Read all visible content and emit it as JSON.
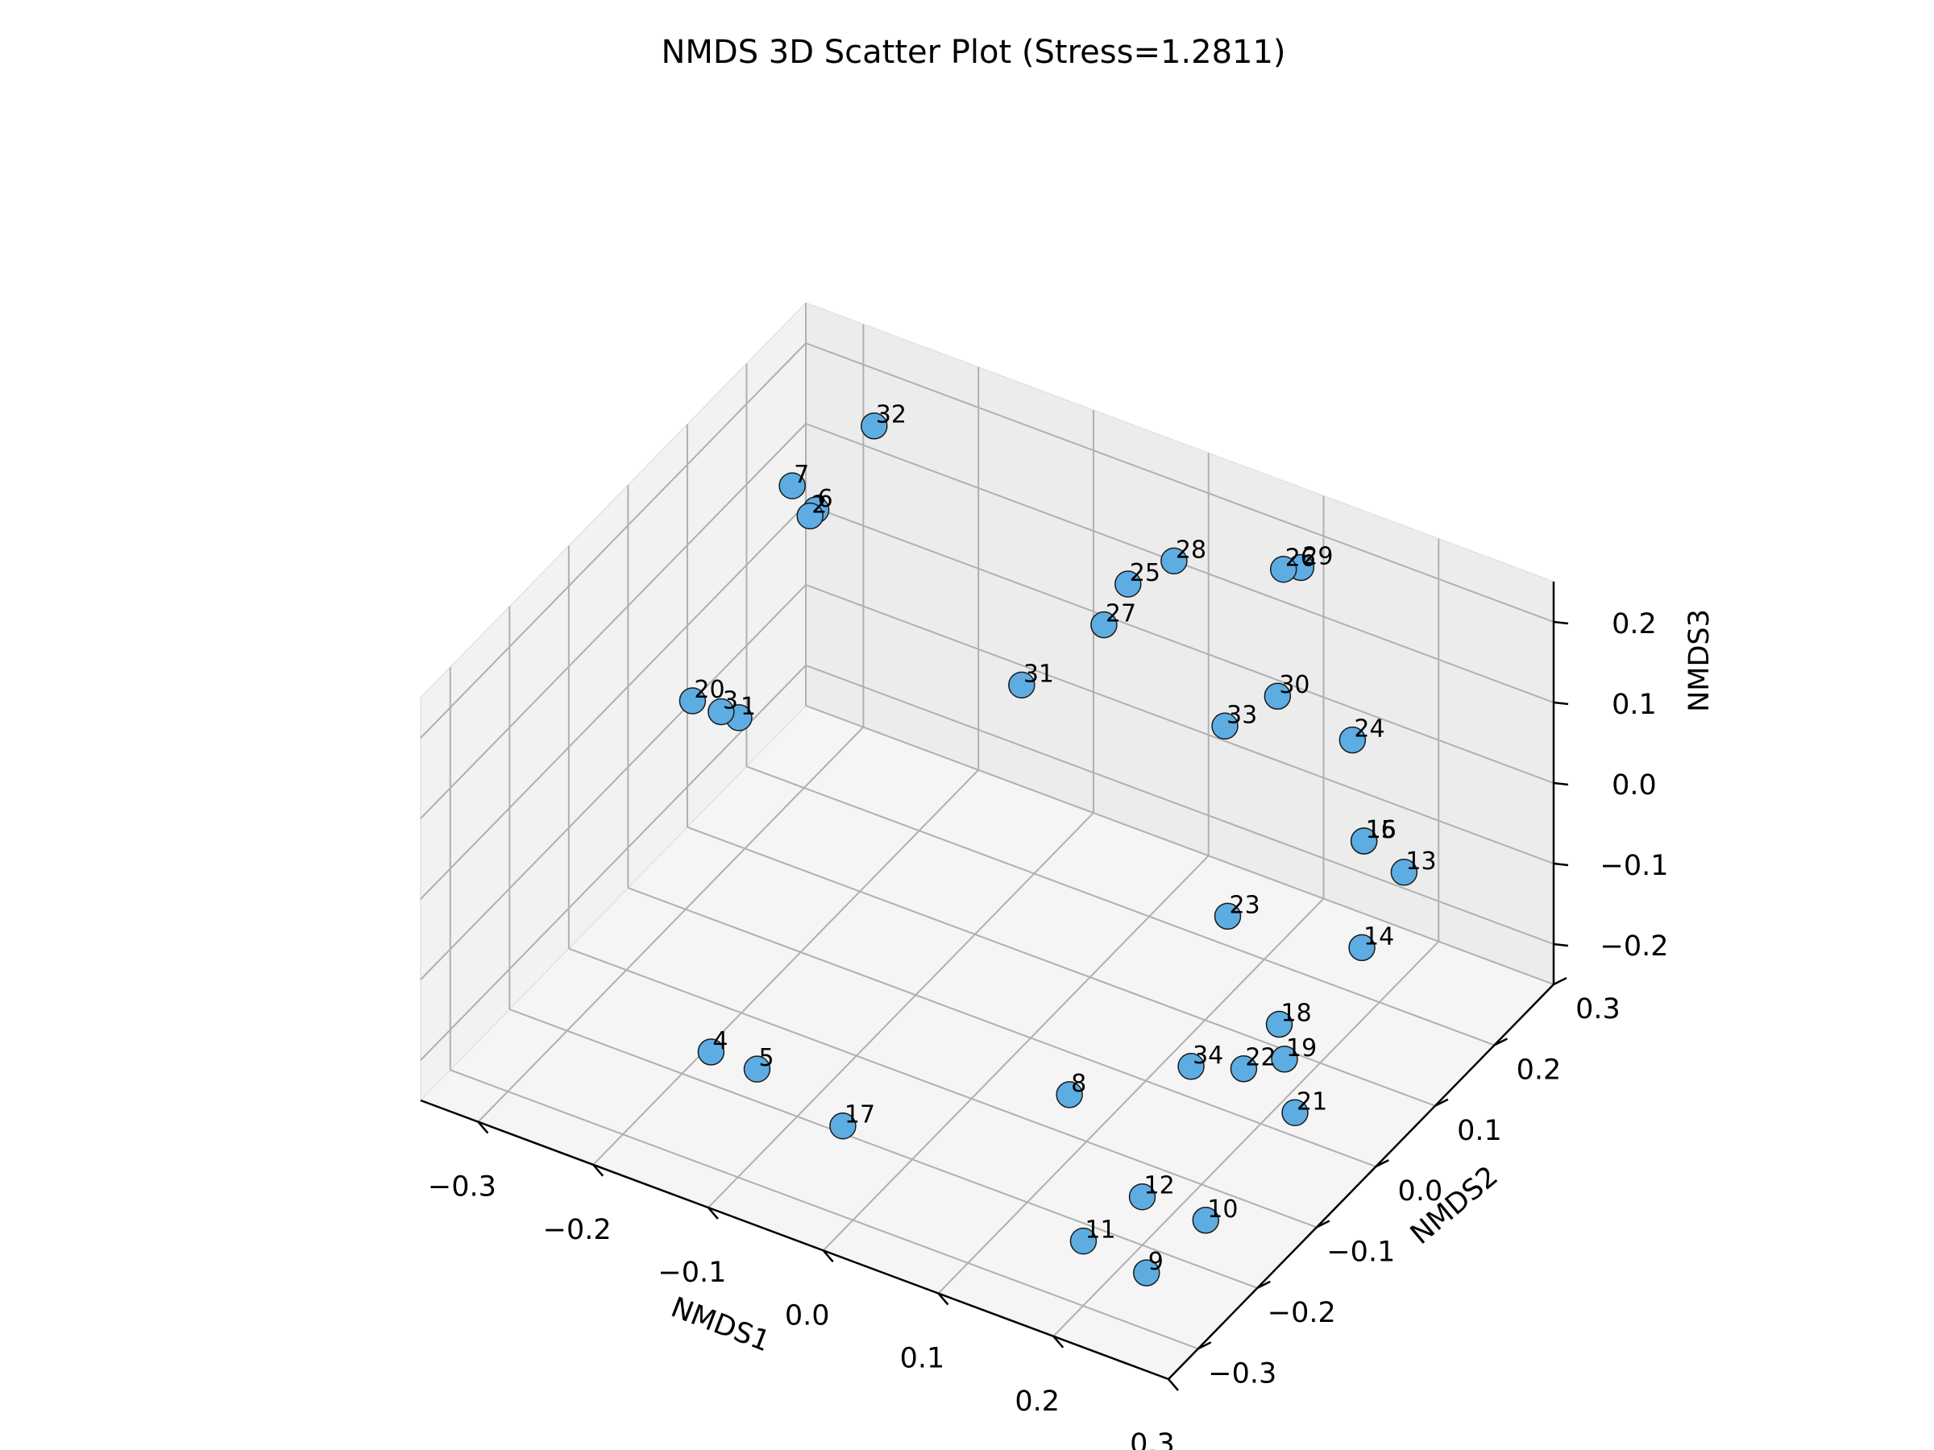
{
  "chart_data": {
    "type": "scatter",
    "projection": "3d",
    "title": "NMDS 3D Scatter Plot (Stress=1.2811)",
    "xlabel": "NMDS1",
    "ylabel": "NMDS2",
    "zlabel": "NMDS3",
    "xlim": [
      -0.35,
      0.3
    ],
    "ylim": [
      -0.35,
      0.3
    ],
    "zlim": [
      -0.25,
      0.25
    ],
    "x_ticks": [
      -0.3,
      -0.2,
      -0.1,
      0.0,
      0.1,
      0.2,
      0.3
    ],
    "x_tick_labels": [
      "−0.3",
      "−0.2",
      "−0.1",
      "0.0",
      "0.1",
      "0.2",
      "0.3"
    ],
    "y_ticks": [
      -0.3,
      -0.2,
      -0.1,
      0.0,
      0.1,
      0.2,
      0.3
    ],
    "y_tick_labels": [
      "−0.3",
      "−0.2",
      "−0.1",
      "0.0",
      "0.1",
      "0.2",
      "0.3"
    ],
    "z_ticks": [
      -0.2,
      -0.1,
      0.0,
      0.1,
      0.2
    ],
    "z_tick_labels": [
      "−0.2",
      "−0.1",
      "0.0",
      "0.1",
      "0.2"
    ],
    "grid": true,
    "marker_color": "#5DADE2",
    "marker_edge_color": "#1a1a1a",
    "points": [
      {
        "label": "1",
        "x": -0.3,
        "y": 0.09,
        "z": -0.08
      },
      {
        "label": "2",
        "x": -0.3,
        "y": 0.21,
        "z": 0.08
      },
      {
        "label": "3",
        "x": -0.3,
        "y": 0.06,
        "z": -0.05
      },
      {
        "label": "4",
        "x": -0.18,
        "y": -0.19,
        "z": -0.22
      },
      {
        "label": "5",
        "x": -0.14,
        "y": -0.19,
        "z": -0.22
      },
      {
        "label": "6",
        "x": -0.3,
        "y": 0.22,
        "z": 0.08
      },
      {
        "label": "7",
        "x": -0.3,
        "y": 0.18,
        "z": 0.14
      },
      {
        "label": "8",
        "x": 0.08,
        "y": -0.09,
        "z": -0.21
      },
      {
        "label": "9",
        "x": 0.25,
        "y": -0.29,
        "z": -0.19
      },
      {
        "label": "10",
        "x": 0.25,
        "y": -0.19,
        "z": -0.2
      },
      {
        "label": "11",
        "x": 0.19,
        "y": -0.28,
        "z": -0.19
      },
      {
        "label": "12",
        "x": 0.2,
        "y": -0.2,
        "z": -0.19
      },
      {
        "label": "13",
        "x": 0.17,
        "y": 0.3,
        "z": -0.18
      },
      {
        "label": "14",
        "x": 0.19,
        "y": 0.19,
        "z": -0.18
      },
      {
        "label": "15",
        "x": 0.13,
        "y": 0.31,
        "z": -0.17
      },
      {
        "label": "16",
        "x": 0.13,
        "y": 0.31,
        "z": -0.17
      },
      {
        "label": "17",
        "x": -0.05,
        "y": -0.22,
        "z": -0.22
      },
      {
        "label": "18",
        "x": 0.18,
        "y": 0.07,
        "z": -0.19
      },
      {
        "label": "19",
        "x": 0.2,
        "y": 0.04,
        "z": -0.2
      },
      {
        "label": "20",
        "x": -0.33,
        "y": 0.07,
        "z": -0.06
      },
      {
        "label": "21",
        "x": 0.24,
        "y": -0.02,
        "z": -0.2
      },
      {
        "label": "22",
        "x": 0.18,
        "y": 0.01,
        "z": -0.2
      },
      {
        "label": "23",
        "x": 0.13,
        "y": 0.08,
        "z": -0.09
      },
      {
        "label": "24",
        "x": 0.12,
        "y": 0.31,
        "z": -0.05
      },
      {
        "label": "25",
        "x": -0.07,
        "y": 0.3,
        "z": 0.05
      },
      {
        "label": "26",
        "x": 0.06,
        "y": 0.31,
        "z": 0.13
      },
      {
        "label": "27",
        "x": -0.06,
        "y": 0.24,
        "z": 0.05
      },
      {
        "label": "28",
        "x": -0.03,
        "y": 0.3,
        "z": 0.1
      },
      {
        "label": "29",
        "x": 0.07,
        "y": 0.32,
        "z": 0.13
      },
      {
        "label": "30",
        "x": 0.06,
        "y": 0.3,
        "z": -0.02
      },
      {
        "label": "31",
        "x": -0.08,
        "y": 0.14,
        "z": 0.04
      },
      {
        "label": "32",
        "x": -0.27,
        "y": 0.26,
        "z": 0.17
      },
      {
        "label": "33",
        "x": 0.04,
        "y": 0.25,
        "z": -0.03
      },
      {
        "label": "34",
        "x": 0.16,
        "y": -0.04,
        "z": -0.17
      }
    ]
  }
}
